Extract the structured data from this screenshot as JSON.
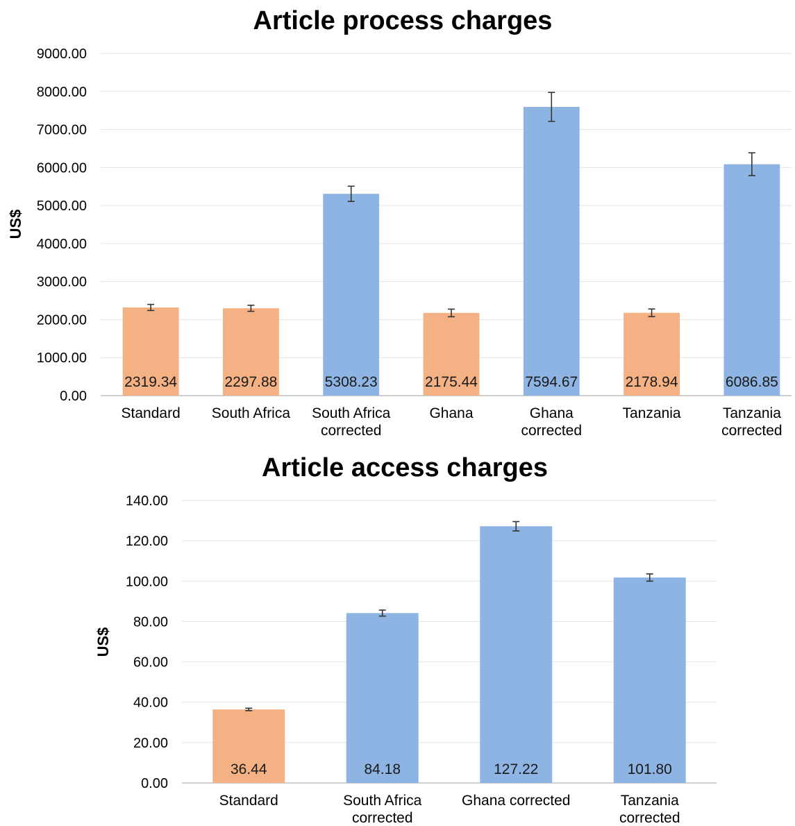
{
  "chart_data": [
    {
      "type": "bar",
      "title": "Article process charges",
      "ylabel": "US$",
      "xlabel": "",
      "ylim": [
        0,
        9000
      ],
      "yticks": [
        "0.00",
        "1000.00",
        "2000.00",
        "3000.00",
        "4000.00",
        "5000.00",
        "6000.00",
        "7000.00",
        "8000.00",
        "9000.00"
      ],
      "grid": true,
      "categories": [
        [
          "Standard"
        ],
        [
          "South Africa"
        ],
        [
          "South Africa",
          "corrected"
        ],
        [
          "Ghana"
        ],
        [
          "Ghana",
          "corrected"
        ],
        [
          "Tanzania"
        ],
        [
          "Tanzania",
          "corrected"
        ]
      ],
      "values": [
        2319.34,
        2297.88,
        5308.23,
        2175.44,
        7594.67,
        2178.94,
        6086.85
      ],
      "value_labels": [
        "2319.34",
        "2297.88",
        "5308.23",
        "2175.44",
        "7594.67",
        "2178.94",
        "6086.85"
      ],
      "error": [
        80,
        80,
        200,
        100,
        380,
        100,
        300
      ],
      "bar_colors": [
        "#f4b183",
        "#f4b183",
        "#8db4e2",
        "#f4b183",
        "#8db4e2",
        "#f4b183",
        "#8db4e2"
      ]
    },
    {
      "type": "bar",
      "title": "Article access charges",
      "ylabel": "US$",
      "xlabel": "",
      "ylim": [
        0,
        140
      ],
      "yticks": [
        "0.00",
        "20.00",
        "40.00",
        "60.00",
        "80.00",
        "100.00",
        "120.00",
        "140.00"
      ],
      "grid": true,
      "categories": [
        [
          "Standard"
        ],
        [
          "South Africa",
          "corrected"
        ],
        [
          "Ghana corrected"
        ],
        [
          "Tanzania",
          "corrected"
        ]
      ],
      "values": [
        36.44,
        84.18,
        127.22,
        101.8
      ],
      "value_labels": [
        "36.44",
        "84.18",
        "127.22",
        "101.80"
      ],
      "error": [
        0.6,
        1.5,
        2.3,
        1.8
      ],
      "bar_colors": [
        "#f4b183",
        "#8db4e2",
        "#8db4e2",
        "#8db4e2"
      ]
    }
  ]
}
